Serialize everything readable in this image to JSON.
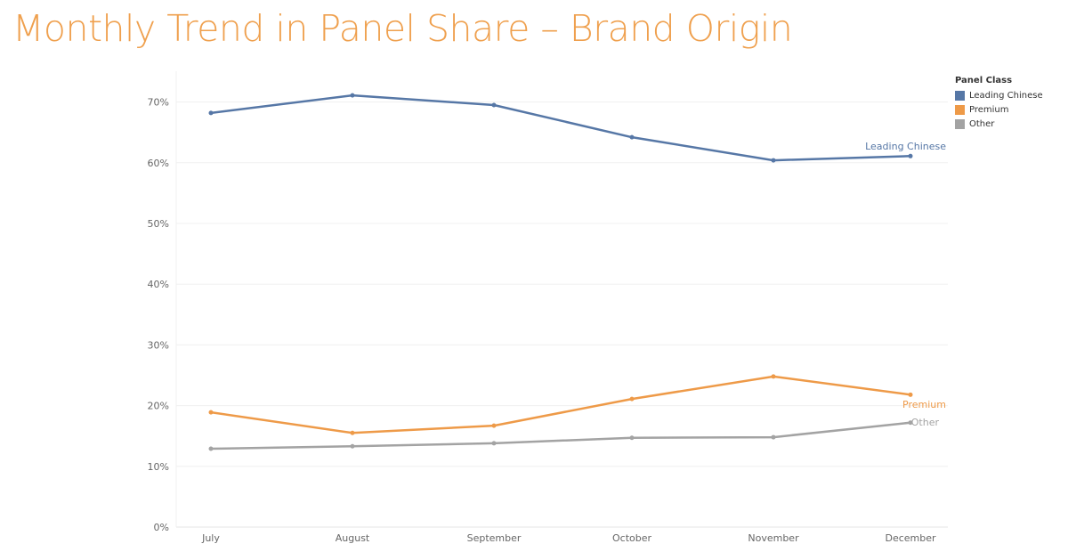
{
  "chart_data": {
    "type": "line",
    "title": "Monthly Trend in Panel Share – Brand Origin",
    "xlabel": "",
    "ylabel": "",
    "categories": [
      "July",
      "August",
      "September",
      "October",
      "November",
      "December"
    ],
    "yticks": [
      "0%",
      "10%",
      "20%",
      "30%",
      "40%",
      "50%",
      "60%",
      "70%"
    ],
    "ylim": [
      0,
      74
    ],
    "legend_title": "Panel Class",
    "legend_placement": "top-right",
    "series": [
      {
        "name": "Leading Chinese",
        "color": "#5677A6",
        "values": [
          68.2,
          71.1,
          69.5,
          64.2,
          60.4,
          61.1
        ]
      },
      {
        "name": "Premium",
        "color": "#EE9A48",
        "values": [
          18.9,
          15.5,
          16.7,
          21.1,
          24.8,
          21.8
        ]
      },
      {
        "name": "Other",
        "color": "#A3A3A3",
        "values": [
          12.9,
          13.3,
          13.8,
          14.7,
          14.8,
          17.2
        ]
      }
    ]
  }
}
